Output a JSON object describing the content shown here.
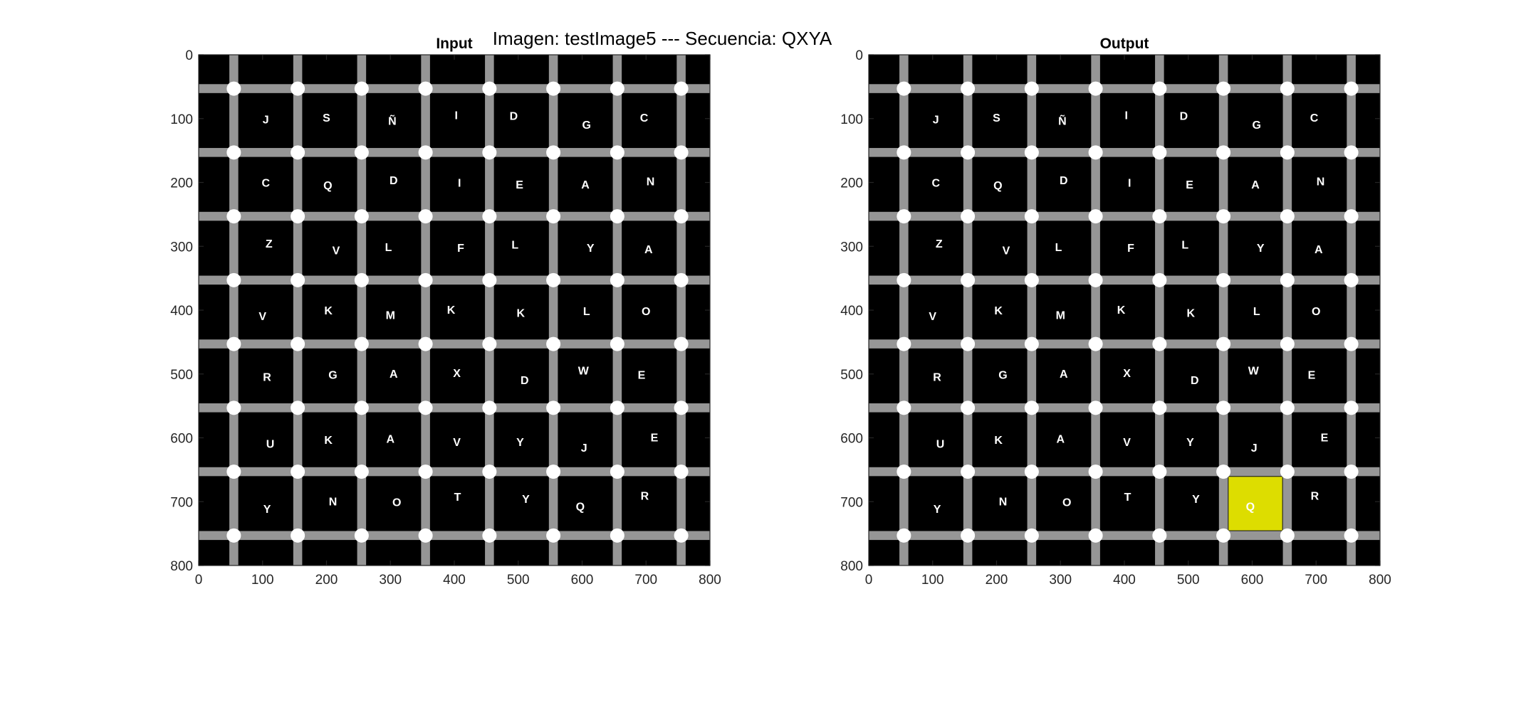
{
  "figure": {
    "suptitle": "Imagen: testImage5 --- Secuencia: QXYA"
  },
  "colors": {
    "background": "#000000",
    "grid_line": "#969696",
    "node": "#ffffff",
    "letter": "#ffffff",
    "highlight": "#dddd00",
    "axis": "#262626"
  },
  "chart_data": [
    {
      "type": "heatmap",
      "title": "Input",
      "xlim": [
        0,
        800
      ],
      "ylim": [
        0,
        800
      ],
      "y_reversed": true,
      "xticks": [
        0,
        100,
        200,
        300,
        400,
        500,
        600,
        700,
        800
      ],
      "yticks": [
        0,
        100,
        200,
        300,
        400,
        500,
        600,
        700,
        800
      ],
      "grid_lines": {
        "vertical_x": [
          55,
          155,
          255,
          355,
          455,
          555,
          655,
          755
        ],
        "horizontal_y": [
          53,
          153,
          253,
          353,
          453,
          553,
          653,
          753
        ]
      },
      "letters": [
        {
          "x": 105,
          "y": 103,
          "t": "J"
        },
        {
          "x": 200,
          "y": 100,
          "t": "S"
        },
        {
          "x": 303,
          "y": 105,
          "t": "Ñ"
        },
        {
          "x": 403,
          "y": 96,
          "t": "I"
        },
        {
          "x": 493,
          "y": 97,
          "t": "D"
        },
        {
          "x": 607,
          "y": 111,
          "t": "G"
        },
        {
          "x": 697,
          "y": 100,
          "t": "C"
        },
        {
          "x": 105,
          "y": 202,
          "t": "C"
        },
        {
          "x": 202,
          "y": 206,
          "t": "Q"
        },
        {
          "x": 305,
          "y": 198,
          "t": "D"
        },
        {
          "x": 408,
          "y": 202,
          "t": "I"
        },
        {
          "x": 502,
          "y": 205,
          "t": "E"
        },
        {
          "x": 605,
          "y": 205,
          "t": "A"
        },
        {
          "x": 707,
          "y": 200,
          "t": "N"
        },
        {
          "x": 110,
          "y": 297,
          "t": "Z"
        },
        {
          "x": 215,
          "y": 308,
          "t": "V"
        },
        {
          "x": 297,
          "y": 303,
          "t": "L"
        },
        {
          "x": 410,
          "y": 304,
          "t": "F"
        },
        {
          "x": 495,
          "y": 299,
          "t": "L"
        },
        {
          "x": 613,
          "y": 304,
          "t": "Y"
        },
        {
          "x": 704,
          "y": 306,
          "t": "A"
        },
        {
          "x": 100,
          "y": 411,
          "t": "V"
        },
        {
          "x": 203,
          "y": 402,
          "t": "K"
        },
        {
          "x": 300,
          "y": 409,
          "t": "M"
        },
        {
          "x": 395,
          "y": 401,
          "t": "K"
        },
        {
          "x": 504,
          "y": 406,
          "t": "K"
        },
        {
          "x": 607,
          "y": 403,
          "t": "L"
        },
        {
          "x": 700,
          "y": 403,
          "t": "O"
        },
        {
          "x": 107,
          "y": 506,
          "t": "R"
        },
        {
          "x": 210,
          "y": 503,
          "t": "G"
        },
        {
          "x": 305,
          "y": 501,
          "t": "A"
        },
        {
          "x": 404,
          "y": 500,
          "t": "X"
        },
        {
          "x": 510,
          "y": 511,
          "t": "D"
        },
        {
          "x": 602,
          "y": 496,
          "t": "W"
        },
        {
          "x": 693,
          "y": 503,
          "t": "E"
        },
        {
          "x": 112,
          "y": 611,
          "t": "U"
        },
        {
          "x": 203,
          "y": 605,
          "t": "K"
        },
        {
          "x": 300,
          "y": 603,
          "t": "A"
        },
        {
          "x": 404,
          "y": 608,
          "t": "V"
        },
        {
          "x": 503,
          "y": 608,
          "t": "Y"
        },
        {
          "x": 603,
          "y": 617,
          "t": "J"
        },
        {
          "x": 713,
          "y": 601,
          "t": "E"
        },
        {
          "x": 107,
          "y": 713,
          "t": "Y"
        },
        {
          "x": 210,
          "y": 701,
          "t": "N"
        },
        {
          "x": 310,
          "y": 702,
          "t": "O"
        },
        {
          "x": 405,
          "y": 694,
          "t": "T"
        },
        {
          "x": 512,
          "y": 697,
          "t": "Y"
        },
        {
          "x": 597,
          "y": 709,
          "t": "Q"
        },
        {
          "x": 698,
          "y": 692,
          "t": "R"
        }
      ]
    },
    {
      "type": "heatmap",
      "title": "Output",
      "xlim": [
        0,
        800
      ],
      "ylim": [
        0,
        800
      ],
      "y_reversed": true,
      "xticks": [
        0,
        100,
        200,
        300,
        400,
        500,
        600,
        700,
        800
      ],
      "yticks": [
        0,
        100,
        200,
        300,
        400,
        500,
        600,
        700,
        800
      ],
      "grid_lines": {
        "vertical_x": [
          55,
          155,
          255,
          355,
          455,
          555,
          655,
          755
        ],
        "horizontal_y": [
          53,
          153,
          253,
          353,
          453,
          553,
          653,
          753
        ]
      },
      "highlight": {
        "x0": 563,
        "x1": 647,
        "y0": 661,
        "y1": 745,
        "label": "Q"
      },
      "letters": [
        {
          "x": 105,
          "y": 103,
          "t": "J"
        },
        {
          "x": 200,
          "y": 100,
          "t": "S"
        },
        {
          "x": 303,
          "y": 105,
          "t": "Ñ"
        },
        {
          "x": 403,
          "y": 96,
          "t": "I"
        },
        {
          "x": 493,
          "y": 97,
          "t": "D"
        },
        {
          "x": 607,
          "y": 111,
          "t": "G"
        },
        {
          "x": 697,
          "y": 100,
          "t": "C"
        },
        {
          "x": 105,
          "y": 202,
          "t": "C"
        },
        {
          "x": 202,
          "y": 206,
          "t": "Q"
        },
        {
          "x": 305,
          "y": 198,
          "t": "D"
        },
        {
          "x": 408,
          "y": 202,
          "t": "I"
        },
        {
          "x": 502,
          "y": 205,
          "t": "E"
        },
        {
          "x": 605,
          "y": 205,
          "t": "A"
        },
        {
          "x": 707,
          "y": 200,
          "t": "N"
        },
        {
          "x": 110,
          "y": 297,
          "t": "Z"
        },
        {
          "x": 215,
          "y": 308,
          "t": "V"
        },
        {
          "x": 297,
          "y": 303,
          "t": "L"
        },
        {
          "x": 410,
          "y": 304,
          "t": "F"
        },
        {
          "x": 495,
          "y": 299,
          "t": "L"
        },
        {
          "x": 613,
          "y": 304,
          "t": "Y"
        },
        {
          "x": 704,
          "y": 306,
          "t": "A"
        },
        {
          "x": 100,
          "y": 411,
          "t": "V"
        },
        {
          "x": 203,
          "y": 402,
          "t": "K"
        },
        {
          "x": 300,
          "y": 409,
          "t": "M"
        },
        {
          "x": 395,
          "y": 401,
          "t": "K"
        },
        {
          "x": 504,
          "y": 406,
          "t": "K"
        },
        {
          "x": 607,
          "y": 403,
          "t": "L"
        },
        {
          "x": 700,
          "y": 403,
          "t": "O"
        },
        {
          "x": 107,
          "y": 506,
          "t": "R"
        },
        {
          "x": 210,
          "y": 503,
          "t": "G"
        },
        {
          "x": 305,
          "y": 501,
          "t": "A"
        },
        {
          "x": 404,
          "y": 500,
          "t": "X"
        },
        {
          "x": 510,
          "y": 511,
          "t": "D"
        },
        {
          "x": 602,
          "y": 496,
          "t": "W"
        },
        {
          "x": 693,
          "y": 503,
          "t": "E"
        },
        {
          "x": 112,
          "y": 611,
          "t": "U"
        },
        {
          "x": 203,
          "y": 605,
          "t": "K"
        },
        {
          "x": 300,
          "y": 603,
          "t": "A"
        },
        {
          "x": 404,
          "y": 608,
          "t": "V"
        },
        {
          "x": 503,
          "y": 608,
          "t": "Y"
        },
        {
          "x": 603,
          "y": 617,
          "t": "J"
        },
        {
          "x": 713,
          "y": 601,
          "t": "E"
        },
        {
          "x": 107,
          "y": 713,
          "t": "Y"
        },
        {
          "x": 210,
          "y": 701,
          "t": "N"
        },
        {
          "x": 310,
          "y": 702,
          "t": "O"
        },
        {
          "x": 405,
          "y": 694,
          "t": "T"
        },
        {
          "x": 512,
          "y": 697,
          "t": "Y"
        },
        {
          "x": 597,
          "y": 709,
          "t": "Q"
        },
        {
          "x": 698,
          "y": 692,
          "t": "R"
        }
      ]
    }
  ]
}
